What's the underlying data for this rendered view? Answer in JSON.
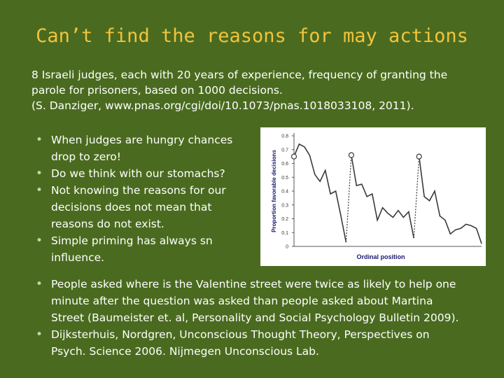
{
  "slide": {
    "title": "Can’t find the reasons for may actions",
    "intro_lines": [
      "8 Israeli judges, each with 20 years of experience, frequency of granting the",
      "parole for prisoners, based on 1000 decisions.",
      "(S. Danziger, www.pnas.org/cgi/doi/10.1073/pnas.1018033108, 2011)."
    ],
    "left_bullets": [
      [
        "When judges are hungry chances",
        "drop to zero!"
      ],
      [
        "Do we think with our stomachs?"
      ],
      [
        "Not knowing the reasons for our",
        "decisions does not mean that",
        "reasons do not exist."
      ],
      [
        "Simple priming has always sn",
        "influence."
      ]
    ],
    "bottom_bullets": [
      [
        "People asked where is the Valentine street were twice as likely to help one",
        "minute after the question was asked than people asked about Martina",
        "Street (Baumeister et. al, Personality and Social Psychology Bulletin 2009)."
      ],
      [
        "Dijksterhuis, Nordgren, Unconscious Thought Theory,  Perspectives on",
        "Psych. Science  2006. Nijmegen Unconscious Lab."
      ]
    ],
    "bullet_glyph": "•",
    "colors": {
      "background": "#4a6b1f",
      "title": "#f2c33c",
      "text": "#ffffff"
    }
  },
  "chart_data": {
    "type": "line",
    "xlabel": "Ordinal position",
    "ylabel": "Proportion favorable decisions",
    "ylim": [
      0,
      0.8
    ],
    "yticks": [
      "0",
      "0.1",
      "0.2",
      "0.3",
      "0.4",
      "0.5",
      "0.6",
      "0.7",
      "0.8"
    ],
    "break_markers": [
      0,
      11,
      24
    ],
    "series": [
      {
        "values": [
          0.65,
          0.74,
          0.72,
          0.66,
          0.52,
          0.47,
          0.55,
          0.38,
          0.4,
          0.22,
          0.03
        ]
      },
      {
        "values": [
          0.66,
          0.44,
          0.45,
          0.36,
          0.38,
          0.19,
          0.28,
          0.24,
          0.21,
          0.26,
          0.21,
          0.25,
          0.06
        ]
      },
      {
        "values": [
          0.65,
          0.36,
          0.33,
          0.4,
          0.22,
          0.19,
          0.09,
          0.12,
          0.13,
          0.16,
          0.15,
          0.13,
          0.02
        ]
      }
    ]
  }
}
